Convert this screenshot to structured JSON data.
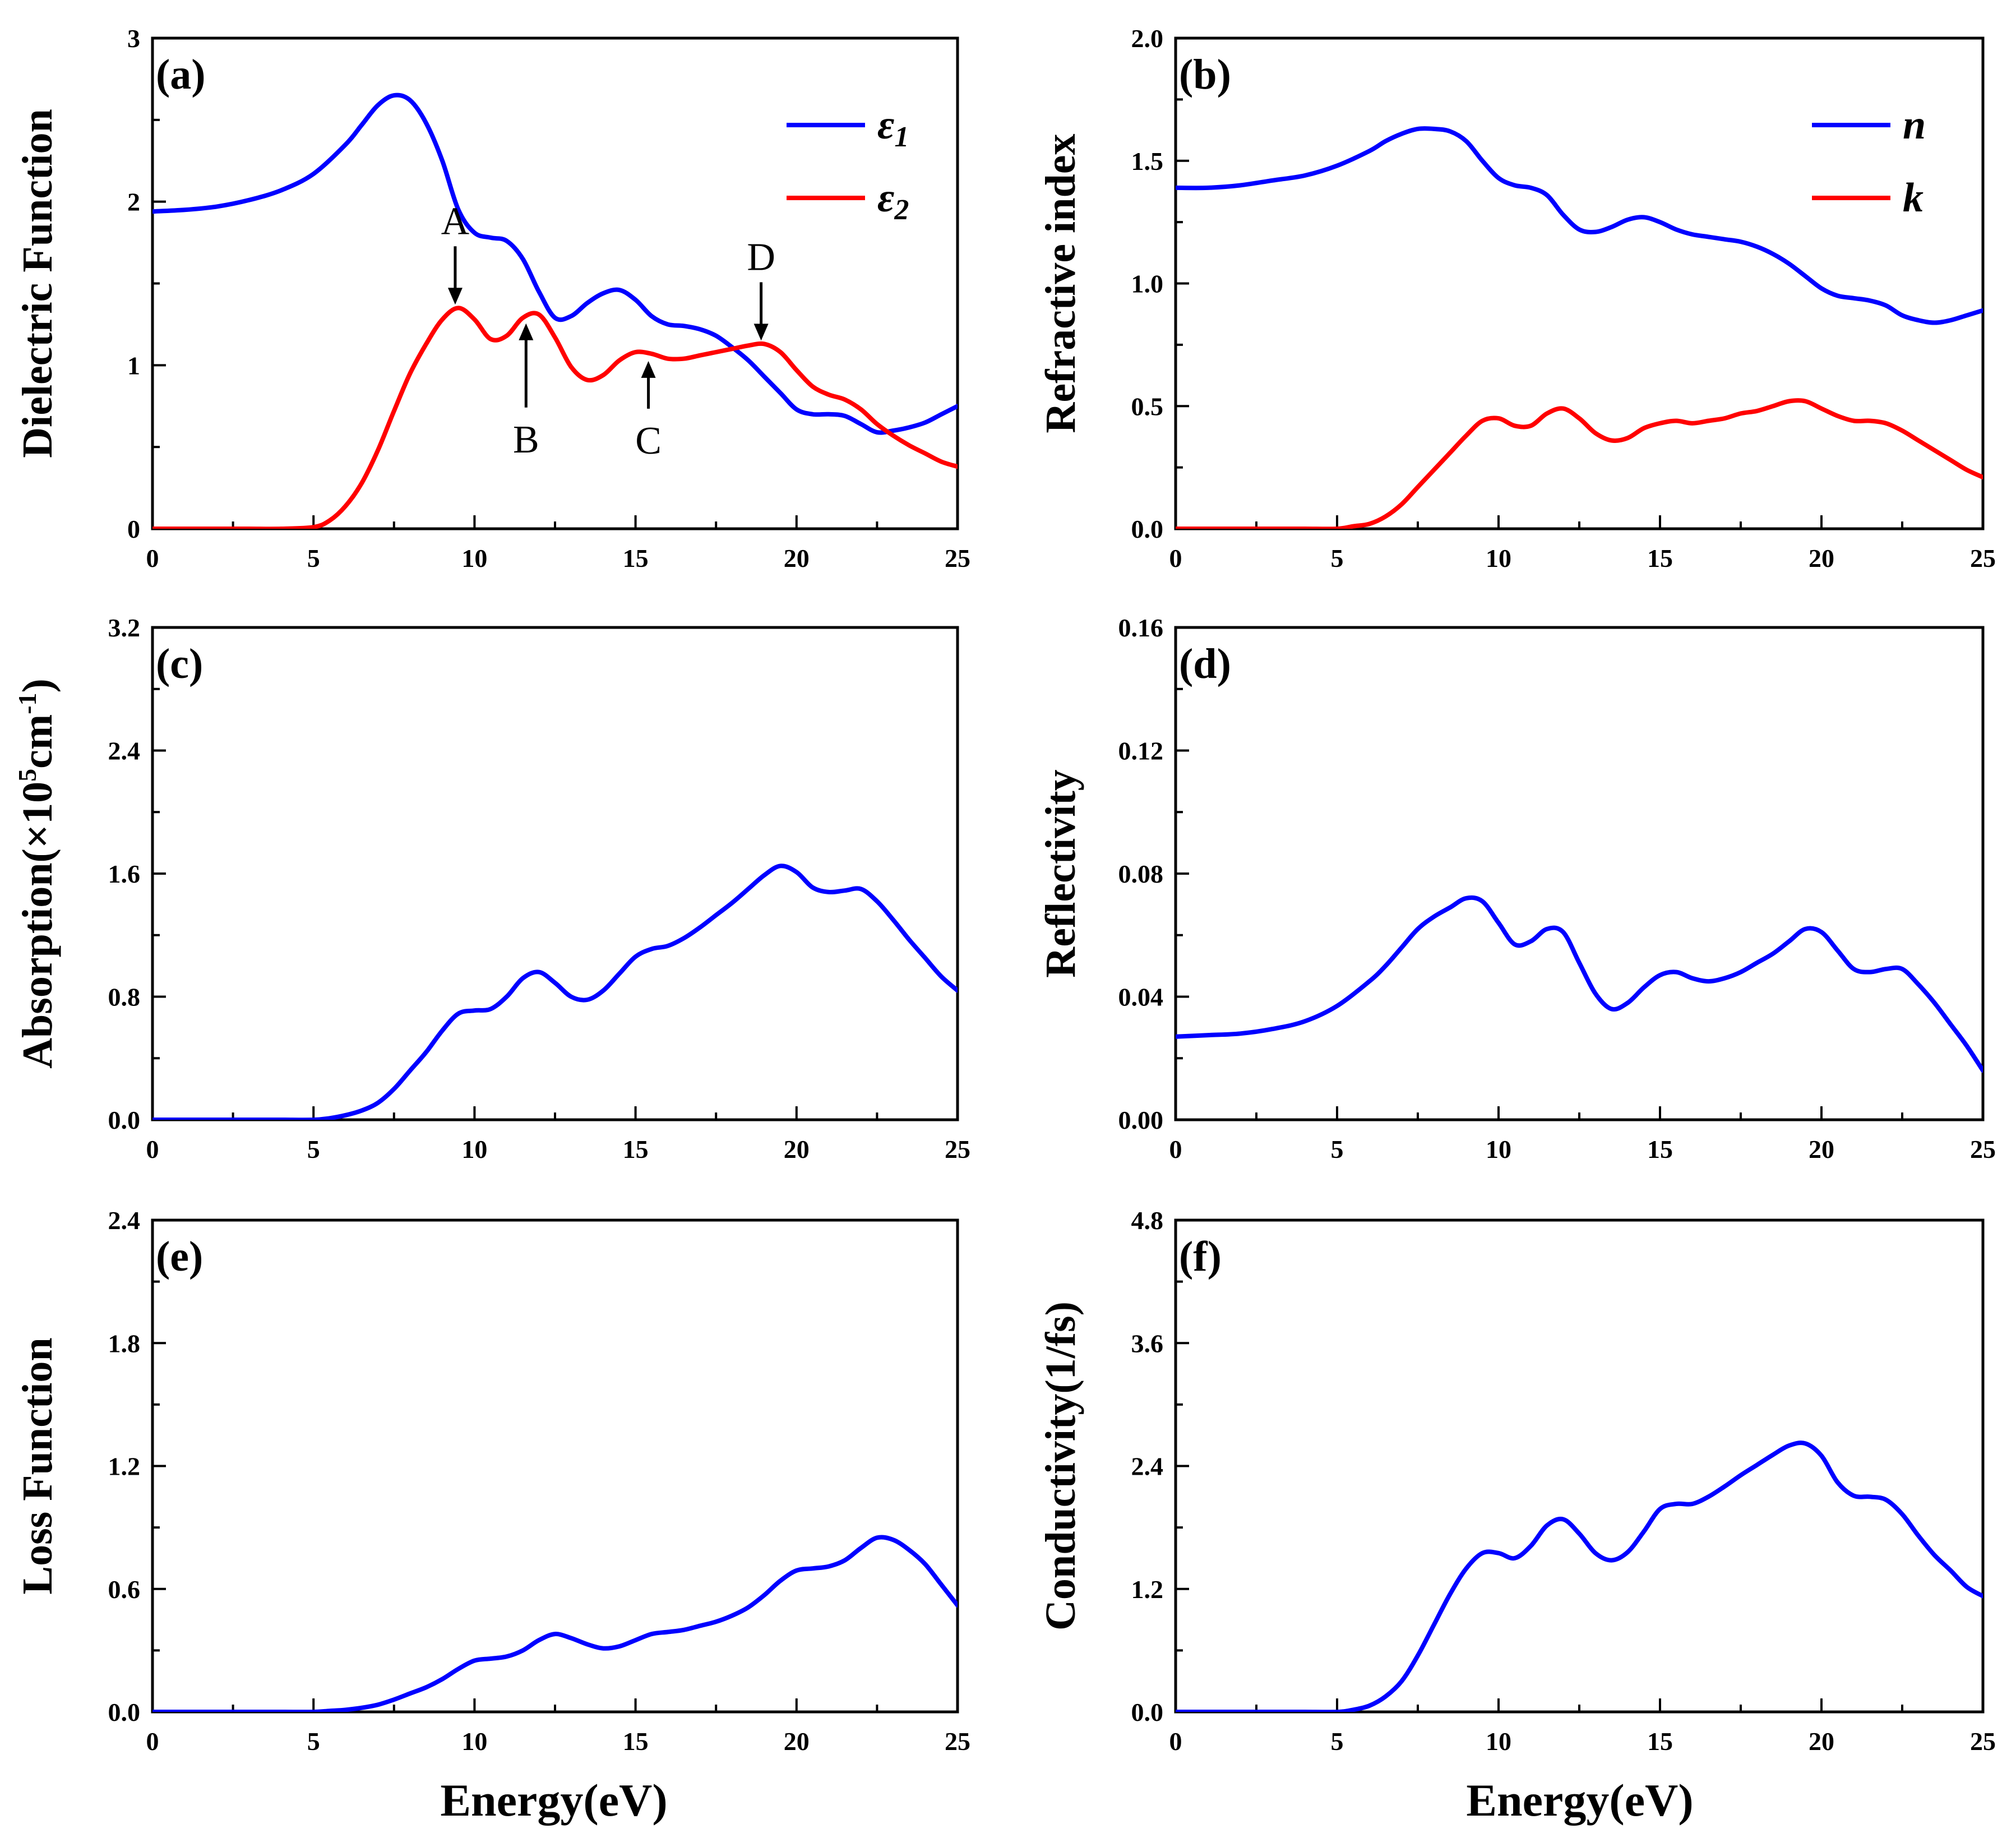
{
  "figure": {
    "xlabel": "Energy(eV)"
  },
  "chart_data": [
    {
      "id": "a",
      "type": "line",
      "panel_label": "(a)",
      "xlabel": "",
      "ylabel": "Dielectric Function",
      "xlim": [
        0,
        25
      ],
      "ylim": [
        0,
        3
      ],
      "xticks": [
        0,
        5,
        10,
        15,
        20,
        25
      ],
      "yticks": [
        0,
        1,
        2,
        3
      ],
      "ytick_labels": [
        "0",
        "1",
        "2",
        "3"
      ],
      "legend_position": "top-right",
      "series": [
        {
          "name": "ε1",
          "label_main": "ε",
          "label_sub": "1",
          "color": "#0000ff",
          "x": [
            0,
            1,
            2,
            3,
            4,
            5,
            6,
            6.5,
            7,
            7.5,
            8,
            8.5,
            9,
            9.5,
            10,
            10.5,
            11,
            11.5,
            12,
            12.5,
            13,
            13.5,
            14,
            14.5,
            15,
            15.5,
            16,
            16.5,
            17,
            17.5,
            18,
            18.5,
            19,
            19.5,
            20,
            20.5,
            21,
            21.5,
            22,
            22.5,
            23,
            23.5,
            24,
            24.5,
            25
          ],
          "y": [
            1.94,
            1.95,
            1.97,
            2.01,
            2.07,
            2.17,
            2.35,
            2.47,
            2.59,
            2.65,
            2.62,
            2.48,
            2.25,
            1.95,
            1.81,
            1.78,
            1.76,
            1.65,
            1.45,
            1.29,
            1.3,
            1.38,
            1.44,
            1.46,
            1.4,
            1.3,
            1.25,
            1.24,
            1.22,
            1.18,
            1.11,
            1.03,
            0.93,
            0.83,
            0.73,
            0.7,
            0.7,
            0.69,
            0.64,
            0.59,
            0.6,
            0.62,
            0.65,
            0.7,
            0.75
          ]
        },
        {
          "name": "ε2",
          "label_main": "ε",
          "label_sub": "2",
          "color": "#ff0000",
          "x": [
            0,
            1,
            2,
            3,
            4,
            5,
            5.5,
            6,
            6.5,
            7,
            7.5,
            8,
            8.5,
            9,
            9.5,
            10,
            10.5,
            11,
            11.5,
            12,
            12.5,
            13,
            13.5,
            14,
            14.5,
            15,
            15.5,
            16,
            16.5,
            17,
            17.5,
            18,
            18.5,
            19,
            19.5,
            20,
            20.5,
            21,
            21.5,
            22,
            22.5,
            23,
            23.5,
            24,
            24.5,
            25
          ],
          "y": [
            0,
            0,
            0,
            0,
            0,
            0.01,
            0.05,
            0.14,
            0.28,
            0.48,
            0.72,
            0.95,
            1.13,
            1.28,
            1.35,
            1.28,
            1.16,
            1.18,
            1.29,
            1.31,
            1.17,
            0.99,
            0.91,
            0.94,
            1.03,
            1.08,
            1.07,
            1.04,
            1.04,
            1.06,
            1.08,
            1.1,
            1.12,
            1.13,
            1.08,
            0.97,
            0.87,
            0.82,
            0.79,
            0.73,
            0.64,
            0.57,
            0.51,
            0.46,
            0.41,
            0.38
          ]
        }
      ],
      "annotations": [
        {
          "label": "A",
          "x": 9.4,
          "y": 1.35,
          "direction": "down"
        },
        {
          "label": "B",
          "x": 11.6,
          "y": 1.29,
          "direction": "up"
        },
        {
          "label": "C",
          "x": 15.4,
          "y": 1.06,
          "direction": "up"
        },
        {
          "label": "D",
          "x": 18.9,
          "y": 1.13,
          "direction": "down"
        }
      ]
    },
    {
      "id": "b",
      "type": "line",
      "panel_label": "(b)",
      "xlabel": "",
      "ylabel": "Refractive index",
      "xlim": [
        0,
        25
      ],
      "ylim": [
        0,
        2
      ],
      "xticks": [
        0,
        5,
        10,
        15,
        20,
        25
      ],
      "yticks": [
        0,
        0.5,
        1,
        1.5,
        2
      ],
      "ytick_labels": [
        "0.0",
        "0.5",
        "1.0",
        "1.5",
        "2.0"
      ],
      "legend_position": "top-right",
      "series": [
        {
          "name": "n",
          "label_main": "n",
          "label_sub": "",
          "color": "#0000ff",
          "x": [
            0,
            1,
            2,
            3,
            4,
            5,
            6,
            6.5,
            7,
            7.5,
            8,
            8.5,
            9,
            9.5,
            10,
            10.5,
            11,
            11.5,
            12,
            12.5,
            13,
            13.5,
            14,
            14.5,
            15,
            15.5,
            16,
            16.5,
            17,
            17.5,
            18,
            18.5,
            19,
            19.5,
            20,
            20.5,
            21,
            21.5,
            22,
            22.5,
            23,
            23.5,
            24,
            24.5,
            25
          ],
          "y": [
            1.39,
            1.39,
            1.4,
            1.42,
            1.44,
            1.48,
            1.54,
            1.58,
            1.61,
            1.63,
            1.63,
            1.62,
            1.58,
            1.5,
            1.43,
            1.4,
            1.39,
            1.36,
            1.28,
            1.22,
            1.21,
            1.23,
            1.26,
            1.27,
            1.25,
            1.22,
            1.2,
            1.19,
            1.18,
            1.17,
            1.15,
            1.12,
            1.08,
            1.03,
            0.98,
            0.95,
            0.94,
            0.93,
            0.91,
            0.87,
            0.85,
            0.84,
            0.85,
            0.87,
            0.89
          ]
        },
        {
          "name": "k",
          "label_main": "k",
          "label_sub": "",
          "color": "#ff0000",
          "x": [
            0,
            1,
            2,
            3,
            4,
            5,
            5.5,
            6,
            6.5,
            7,
            7.5,
            8,
            8.5,
            9,
            9.5,
            10,
            10.5,
            11,
            11.5,
            12,
            12.5,
            13,
            13.5,
            14,
            14.5,
            15,
            15.5,
            16,
            16.5,
            17,
            17.5,
            18,
            18.5,
            19,
            19.5,
            20,
            20.5,
            21,
            21.5,
            22,
            22.5,
            23,
            23.5,
            24,
            24.5,
            25
          ],
          "y": [
            0,
            0,
            0,
            0,
            0,
            0,
            0.01,
            0.02,
            0.05,
            0.1,
            0.17,
            0.24,
            0.31,
            0.38,
            0.44,
            0.45,
            0.42,
            0.42,
            0.47,
            0.49,
            0.45,
            0.39,
            0.36,
            0.37,
            0.41,
            0.43,
            0.44,
            0.43,
            0.44,
            0.45,
            0.47,
            0.48,
            0.5,
            0.52,
            0.52,
            0.49,
            0.46,
            0.44,
            0.44,
            0.43,
            0.4,
            0.36,
            0.32,
            0.28,
            0.24,
            0.21
          ]
        }
      ]
    },
    {
      "id": "c",
      "type": "line",
      "panel_label": "(c)",
      "xlabel": "",
      "ylabel": "Absorption(×10⁵cm⁻¹)",
      "ylabel_parts": {
        "main": "Absorption(×10",
        "sup1": "5",
        "mid": "cm",
        "sup2": "-1",
        "end": ")"
      },
      "xlim": [
        0,
        25
      ],
      "ylim": [
        0,
        3.2
      ],
      "xticks": [
        0,
        5,
        10,
        15,
        20,
        25
      ],
      "yticks": [
        0,
        0.8,
        1.6,
        2.4,
        3.2
      ],
      "ytick_labels": [
        "0.0",
        "0.8",
        "1.6",
        "2.4",
        "3.2"
      ],
      "series": [
        {
          "name": "absorption",
          "color": "#0000ff",
          "x": [
            0,
            1,
            2,
            3,
            4,
            5,
            5.5,
            6,
            6.5,
            7,
            7.5,
            8,
            8.5,
            9,
            9.5,
            10,
            10.5,
            11,
            11.5,
            12,
            12.5,
            13,
            13.5,
            14,
            14.5,
            15,
            15.5,
            16,
            16.5,
            17,
            17.5,
            18,
            18.5,
            19,
            19.5,
            20,
            20.5,
            21,
            21.5,
            22,
            22.5,
            23,
            23.5,
            24,
            24.5,
            25
          ],
          "y": [
            0,
            0,
            0,
            0,
            0,
            0,
            0.01,
            0.03,
            0.06,
            0.11,
            0.2,
            0.32,
            0.44,
            0.58,
            0.69,
            0.71,
            0.72,
            0.8,
            0.92,
            0.96,
            0.89,
            0.8,
            0.78,
            0.84,
            0.95,
            1.06,
            1.11,
            1.13,
            1.18,
            1.25,
            1.33,
            1.41,
            1.5,
            1.59,
            1.65,
            1.61,
            1.51,
            1.48,
            1.49,
            1.5,
            1.42,
            1.3,
            1.17,
            1.05,
            0.93,
            0.84
          ]
        }
      ]
    },
    {
      "id": "d",
      "type": "line",
      "panel_label": "(d)",
      "xlabel": "",
      "ylabel": "Reflectivity",
      "xlim": [
        0,
        25
      ],
      "ylim": [
        0,
        0.16
      ],
      "xticks": [
        0,
        5,
        10,
        15,
        20,
        25
      ],
      "yticks": [
        0,
        0.04,
        0.08,
        0.12,
        0.16
      ],
      "ytick_labels": [
        "0.00",
        "0.04",
        "0.08",
        "0.12",
        "0.16"
      ],
      "series": [
        {
          "name": "reflectivity",
          "color": "#0000ff",
          "x": [
            0,
            1,
            2,
            3,
            4,
            5,
            6,
            6.5,
            7,
            7.5,
            8,
            8.5,
            9,
            9.5,
            10,
            10.5,
            11,
            11.5,
            12,
            12.5,
            13,
            13.5,
            14,
            14.5,
            15,
            15.5,
            16,
            16.5,
            17,
            17.5,
            18,
            18.5,
            19,
            19.5,
            20,
            20.5,
            21,
            21.5,
            22,
            22.5,
            23,
            23.5,
            24,
            24.5,
            25
          ],
          "y": [
            0.027,
            0.0275,
            0.028,
            0.0295,
            0.032,
            0.037,
            0.045,
            0.05,
            0.056,
            0.062,
            0.066,
            0.069,
            0.072,
            0.071,
            0.064,
            0.057,
            0.058,
            0.062,
            0.061,
            0.051,
            0.041,
            0.036,
            0.038,
            0.043,
            0.047,
            0.048,
            0.046,
            0.045,
            0.046,
            0.048,
            0.051,
            0.054,
            0.058,
            0.062,
            0.061,
            0.055,
            0.049,
            0.048,
            0.049,
            0.049,
            0.044,
            0.038,
            0.031,
            0.024,
            0.016
          ]
        }
      ]
    },
    {
      "id": "e",
      "type": "line",
      "panel_label": "(e)",
      "xlabel": "Energy(eV)",
      "ylabel": "Loss Function",
      "xlim": [
        0,
        25
      ],
      "ylim": [
        0,
        2.4
      ],
      "xticks": [
        0,
        5,
        10,
        15,
        20,
        25
      ],
      "yticks": [
        0,
        0.6,
        1.2,
        1.8,
        2.4
      ],
      "ytick_labels": [
        "0.0",
        "0.6",
        "1.2",
        "1.8",
        "2.4"
      ],
      "series": [
        {
          "name": "loss",
          "color": "#0000ff",
          "x": [
            0,
            1,
            2,
            3,
            4,
            5,
            5.5,
            6,
            6.5,
            7,
            7.5,
            8,
            8.5,
            9,
            9.5,
            10,
            10.5,
            11,
            11.5,
            12,
            12.5,
            13,
            13.5,
            14,
            14.5,
            15,
            15.5,
            16,
            16.5,
            17,
            17.5,
            18,
            18.5,
            19,
            19.5,
            20,
            20.5,
            21,
            21.5,
            22,
            22.5,
            23,
            23.5,
            24,
            24.5,
            25
          ],
          "y": [
            0,
            0,
            0,
            0,
            0,
            0,
            0.005,
            0.01,
            0.02,
            0.035,
            0.06,
            0.09,
            0.12,
            0.16,
            0.21,
            0.25,
            0.26,
            0.27,
            0.3,
            0.35,
            0.38,
            0.36,
            0.33,
            0.31,
            0.32,
            0.35,
            0.38,
            0.39,
            0.4,
            0.42,
            0.44,
            0.47,
            0.51,
            0.57,
            0.64,
            0.69,
            0.7,
            0.71,
            0.74,
            0.8,
            0.85,
            0.84,
            0.79,
            0.72,
            0.62,
            0.52
          ]
        }
      ]
    },
    {
      "id": "f",
      "type": "line",
      "panel_label": "(f)",
      "xlabel": "Energy(eV)",
      "ylabel": "Conductivity(1/fs)",
      "xlim": [
        0,
        25
      ],
      "ylim": [
        0,
        4.8
      ],
      "xticks": [
        0,
        5,
        10,
        15,
        20,
        25
      ],
      "yticks": [
        0,
        1.2,
        2.4,
        3.6,
        4.8
      ],
      "ytick_labels": [
        "0.0",
        "1.2",
        "2.4",
        "3.6",
        "4.8"
      ],
      "series": [
        {
          "name": "conductivity",
          "color": "#0000ff",
          "x": [
            0,
            1,
            2,
            3,
            4,
            5,
            5.5,
            6,
            6.5,
            7,
            7.5,
            8,
            8.5,
            9,
            9.5,
            10,
            10.5,
            11,
            11.5,
            12,
            12.5,
            13,
            13.5,
            14,
            14.5,
            15,
            15.5,
            16,
            16.5,
            17,
            17.5,
            18,
            18.5,
            19,
            19.5,
            20,
            20.5,
            21,
            21.5,
            22,
            22.5,
            23,
            23.5,
            24,
            24.5,
            25
          ],
          "y": [
            0,
            0,
            0,
            0,
            0,
            0,
            0.02,
            0.06,
            0.15,
            0.3,
            0.55,
            0.85,
            1.15,
            1.4,
            1.55,
            1.55,
            1.5,
            1.62,
            1.82,
            1.88,
            1.74,
            1.55,
            1.48,
            1.56,
            1.76,
            1.98,
            2.03,
            2.03,
            2.1,
            2.2,
            2.31,
            2.41,
            2.51,
            2.6,
            2.62,
            2.5,
            2.24,
            2.11,
            2.1,
            2.07,
            1.93,
            1.72,
            1.53,
            1.38,
            1.22,
            1.13
          ]
        }
      ]
    }
  ]
}
